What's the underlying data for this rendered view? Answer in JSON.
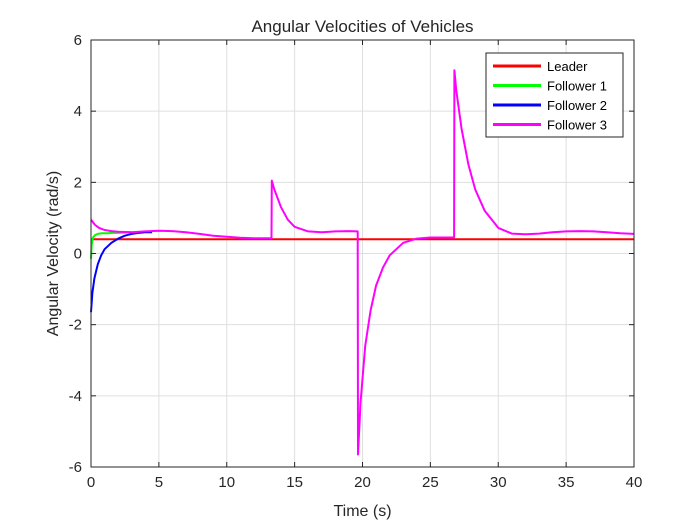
{
  "chart_data": {
    "type": "line",
    "title": "Angular Velocities of Vehicles",
    "xlabel": "Time (s)",
    "ylabel": "Angular Velocity (rad/s)",
    "xlim": [
      0,
      40
    ],
    "ylim": [
      -6,
      6
    ],
    "xticks": [
      0,
      5,
      10,
      15,
      20,
      25,
      30,
      35,
      40
    ],
    "yticks": [
      -6,
      -4,
      -2,
      0,
      2,
      4,
      6
    ],
    "grid": true,
    "legend_position": "top-right",
    "series": [
      {
        "name": "Leader",
        "color": "#ff0000",
        "x": [
          0,
          40
        ],
        "y": [
          0.4,
          0.4
        ]
      },
      {
        "name": "Follower 1",
        "color": "#00ff00",
        "x": [
          0,
          0.05,
          0.15,
          0.3,
          0.5,
          0.8,
          1.2,
          1.6,
          2.0,
          2.5,
          3.0
        ],
        "y": [
          -0.15,
          0.25,
          0.45,
          0.52,
          0.55,
          0.57,
          0.57,
          0.58,
          0.58,
          0.59,
          0.6
        ]
      },
      {
        "name": "Follower 2",
        "color": "#0000ff",
        "x": [
          0,
          0.1,
          0.25,
          0.5,
          0.75,
          1.0,
          1.5,
          2.0,
          2.5,
          3.0,
          3.5,
          4.0,
          4.5
        ],
        "y": [
          -1.65,
          -1.1,
          -0.7,
          -0.3,
          -0.05,
          0.12,
          0.3,
          0.42,
          0.5,
          0.55,
          0.58,
          0.6,
          0.6
        ]
      },
      {
        "name": "Follower 3",
        "color": "#ff00ff",
        "x": [
          0,
          0.1,
          0.3,
          0.6,
          1.0,
          1.5,
          2.0,
          3.0,
          4.0,
          5.0,
          6.0,
          7.0,
          8.0,
          9.0,
          10.0,
          11.0,
          12.0,
          13.3,
          13.32,
          13.5,
          14.0,
          14.5,
          15.0,
          16.0,
          17.0,
          18.0,
          19.0,
          19.65,
          19.67,
          19.85,
          20.2,
          20.6,
          21.0,
          21.5,
          22.0,
          23.0,
          24.0,
          25.0,
          26.0,
          26.75,
          26.77,
          26.9,
          27.3,
          27.8,
          28.3,
          29.0,
          30.0,
          31.0,
          32.0,
          33.0,
          34.0,
          35.0,
          36.0,
          37.0,
          38.0,
          39.0,
          40.0
        ],
        "y": [
          0.95,
          0.9,
          0.8,
          0.72,
          0.66,
          0.63,
          0.61,
          0.6,
          0.62,
          0.64,
          0.63,
          0.6,
          0.55,
          0.5,
          0.47,
          0.44,
          0.43,
          0.43,
          2.05,
          1.8,
          1.3,
          0.95,
          0.75,
          0.62,
          0.6,
          0.62,
          0.63,
          0.62,
          -5.65,
          -4.2,
          -2.6,
          -1.6,
          -0.9,
          -0.4,
          -0.05,
          0.3,
          0.42,
          0.45,
          0.45,
          0.45,
          5.15,
          4.6,
          3.5,
          2.5,
          1.8,
          1.2,
          0.72,
          0.56,
          0.54,
          0.56,
          0.6,
          0.62,
          0.63,
          0.62,
          0.6,
          0.57,
          0.55
        ]
      }
    ]
  }
}
